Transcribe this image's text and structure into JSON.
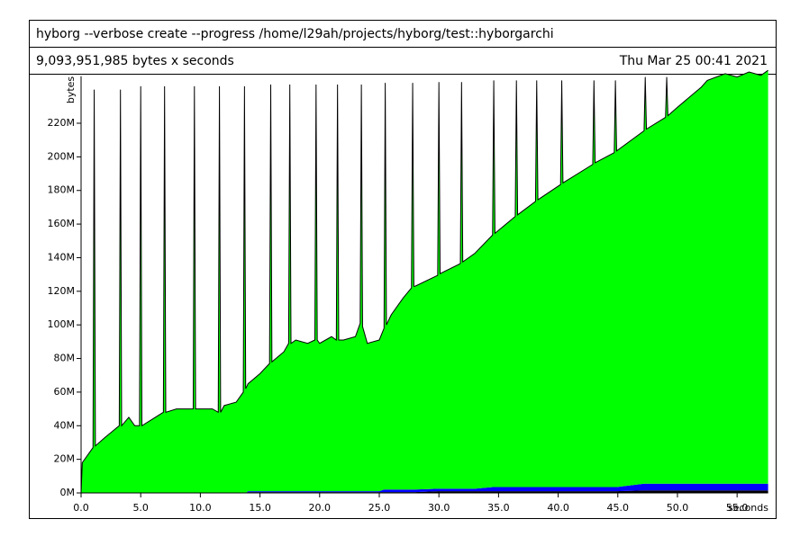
{
  "chart_data": {
    "type": "stacked-area",
    "title": "hyborg --verbose create --progress /home/l29ah/projects/hyborg/test::hyborgarchi",
    "subtitle": "9,093,951,985 bytes x seconds",
    "date": "Thu Mar 25 00:41 2021",
    "y_label": "bytes",
    "x_label": "seconds",
    "xlim": [
      0,
      57.6
    ],
    "ylim": [
      0,
      248
    ],
    "xticks": [
      {
        "value": 0,
        "label": "0.0"
      },
      {
        "value": 5,
        "label": "5.0"
      },
      {
        "value": 10,
        "label": "10.0"
      },
      {
        "value": 15,
        "label": "15.0"
      },
      {
        "value": 20,
        "label": "20.0"
      },
      {
        "value": 25,
        "label": "25.0"
      },
      {
        "value": 30,
        "label": "30.0"
      },
      {
        "value": 35,
        "label": "35.0"
      },
      {
        "value": 40,
        "label": "40.0"
      },
      {
        "value": 45,
        "label": "45.0"
      },
      {
        "value": 50,
        "label": "50.0"
      },
      {
        "value": 55,
        "label": "55.0"
      }
    ],
    "yticks": [
      {
        "value": 0,
        "label": "0M"
      },
      {
        "value": 20,
        "label": "20M"
      },
      {
        "value": 40,
        "label": "40M"
      },
      {
        "value": 60,
        "label": "60M"
      },
      {
        "value": 80,
        "label": "80M"
      },
      {
        "value": 100,
        "label": "100M"
      },
      {
        "value": 120,
        "label": "120M"
      },
      {
        "value": 140,
        "label": "140M"
      },
      {
        "value": 160,
        "label": "160M"
      },
      {
        "value": 180,
        "label": "180M"
      },
      {
        "value": 200,
        "label": "200M"
      },
      {
        "value": 220,
        "label": "220M"
      }
    ],
    "x": [
      0,
      0.1,
      1.0,
      1.1,
      1.2,
      2,
      3.2,
      3.3,
      3.4,
      4,
      4.5,
      4.9,
      5.0,
      5.1,
      6,
      6.9,
      7.0,
      7.1,
      8,
      9,
      9.4,
      9.5,
      9.6,
      10,
      11,
      11.5,
      11.6,
      11.7,
      12,
      13,
      13.6,
      13.7,
      13.8,
      14,
      15,
      15.8,
      15.9,
      16.0,
      17,
      17.4,
      17.5,
      17.6,
      18,
      19,
      19.6,
      19.7,
      19.8,
      20,
      21,
      21.4,
      21.5,
      21.6,
      22,
      23,
      23.4,
      23.5,
      23.6,
      24,
      25,
      25.4,
      25.5,
      25.6,
      26,
      27,
      27.7,
      27.8,
      27.9,
      28,
      29.9,
      30.0,
      30.1,
      31.8,
      31.9,
      32.0,
      33,
      34.5,
      34.6,
      34.7,
      36.4,
      36.5,
      36.6,
      38.1,
      38.2,
      38.3,
      40.2,
      40.3,
      40.4,
      42.9,
      43.0,
      43.1,
      44.7,
      44.8,
      44.9,
      47.2,
      47.3,
      47.4,
      49.0,
      49.1,
      49.2,
      50,
      52,
      52.5,
      54,
      55,
      56,
      57,
      57.6
    ],
    "series": [
      {
        "color": "#000000",
        "values": [
          0,
          0,
          0,
          0,
          0,
          0,
          0,
          0,
          0,
          0,
          0,
          0,
          0,
          0,
          0,
          0,
          0,
          0,
          0,
          0,
          0,
          0,
          0,
          0,
          0,
          0,
          0,
          0,
          0,
          0,
          0,
          0,
          0,
          0.5,
          0.5,
          0.5,
          0.5,
          0.5,
          0.5,
          0.5,
          0.5,
          0.5,
          0.5,
          0.5,
          0.5,
          0.5,
          0.5,
          0.5,
          0.5,
          0.5,
          0.5,
          0.5,
          0.5,
          0.5,
          0.5,
          0.5,
          0.5,
          0.5,
          0.5,
          0.5,
          0.5,
          0.5,
          0.5,
          0.5,
          0.5,
          0.5,
          0.5,
          0.5,
          1,
          1,
          1,
          1,
          1,
          1,
          1,
          1,
          1,
          1,
          1,
          1,
          1,
          1,
          1,
          1,
          1,
          1,
          1,
          1,
          1,
          1,
          1,
          1,
          1,
          1.5,
          1.5,
          1.5,
          1.5,
          1.5,
          1.5,
          1.5,
          1.5,
          1.5,
          1.5,
          1.5,
          1.5,
          1.5,
          1.5
        ]
      },
      {
        "color": "#0000ff",
        "values": [
          0,
          0,
          0,
          0,
          0,
          0,
          0,
          0,
          0,
          0,
          0,
          0,
          0,
          0,
          0,
          0,
          0,
          0,
          0,
          0,
          0,
          0,
          0,
          0,
          0,
          0,
          0,
          0,
          0,
          0,
          0,
          0,
          0,
          0.5,
          0.5,
          0.5,
          0.5,
          0.5,
          0.5,
          0.5,
          0.5,
          0.5,
          0.5,
          0.5,
          0.5,
          0.5,
          0.5,
          0.5,
          0.5,
          0.5,
          0.5,
          0.5,
          0.5,
          0.5,
          0.5,
          0.5,
          0.5,
          0.5,
          0.5,
          1.5,
          1.5,
          1.5,
          1.5,
          1.5,
          1.5,
          1.5,
          1.5,
          1.5,
          1.5,
          1.5,
          1.5,
          1.5,
          1.5,
          1.5,
          1.5,
          2.5,
          2.5,
          2.5,
          2.5,
          2.5,
          2.5,
          2.5,
          2.5,
          2.5,
          2.5,
          2.5,
          2.5,
          2.5,
          2.5,
          2.5,
          2.5,
          2.5,
          2.5,
          4,
          4,
          4,
          4,
          4,
          4,
          4,
          4,
          4,
          4,
          4,
          4,
          4,
          4
        ]
      },
      {
        "color": "#00ff00",
        "values": [
          0,
          18,
          27,
          240,
          28,
          33,
          40,
          240,
          40,
          45,
          40,
          40,
          242,
          40,
          44,
          48,
          242,
          48,
          50,
          50,
          50,
          242,
          50,
          50,
          50,
          48,
          242,
          48,
          52,
          54,
          60,
          242,
          62,
          64,
          70,
          76,
          242,
          77,
          83,
          88,
          242,
          88,
          90,
          88,
          90,
          242,
          90,
          88,
          92,
          90,
          242,
          90,
          90,
          92,
          100,
          242,
          98,
          88,
          90,
          96,
          242,
          98,
          104,
          114,
          120,
          242,
          121,
          121,
          127,
          242,
          128,
          134,
          242,
          135,
          140,
          150,
          242,
          151,
          161,
          242,
          162,
          170,
          242,
          171,
          180,
          242,
          181,
          192,
          242,
          193,
          199,
          242,
          200,
          210,
          242,
          211,
          218,
          242,
          219,
          224,
          236,
          240,
          244,
          242,
          245,
          243,
          246
        ]
      }
    ]
  }
}
